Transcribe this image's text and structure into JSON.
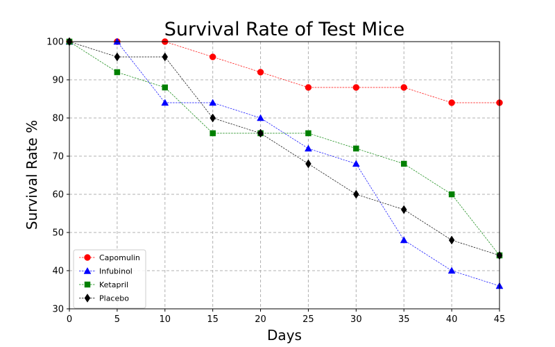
{
  "chart_data": {
    "type": "line",
    "title": "Survival Rate of Test Mice",
    "xlabel": "Days",
    "ylabel": "Survival Rate %",
    "x": [
      0,
      5,
      10,
      15,
      20,
      25,
      30,
      35,
      40,
      45
    ],
    "xlim": [
      0,
      45
    ],
    "ylim": [
      30,
      100
    ],
    "xticks": [
      "0",
      "5",
      "10",
      "15",
      "20",
      "25",
      "30",
      "35",
      "40",
      "45"
    ],
    "yticks": [
      "30",
      "40",
      "50",
      "60",
      "70",
      "80",
      "90",
      "100"
    ],
    "grid": true,
    "legend_position": "lower-left",
    "series": [
      {
        "name": "Capomulin",
        "color": "#ff0000",
        "marker": "circle",
        "values": [
          100,
          100,
          100,
          96,
          92,
          88,
          88,
          88,
          84,
          84
        ]
      },
      {
        "name": "Infubinol",
        "color": "#0000ff",
        "marker": "triangle",
        "values": [
          100,
          100,
          84,
          84,
          80,
          72,
          68,
          48,
          40,
          36
        ]
      },
      {
        "name": "Ketapril",
        "color": "#008000",
        "marker": "square",
        "values": [
          100,
          92,
          88,
          76,
          76,
          76,
          72,
          68,
          60,
          44
        ]
      },
      {
        "name": "Placebo",
        "color": "#000000",
        "marker": "diamond",
        "values": [
          100,
          96,
          96,
          80,
          76,
          68,
          60,
          56,
          48,
          44
        ]
      }
    ]
  }
}
